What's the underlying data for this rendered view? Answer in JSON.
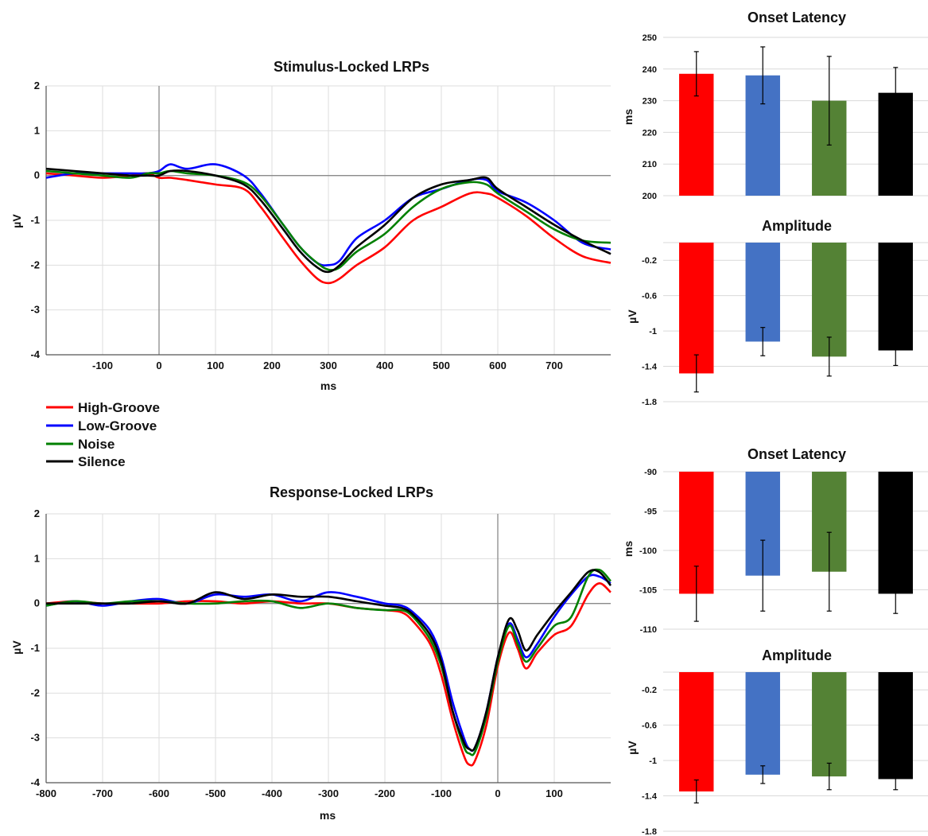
{
  "chart_data": [
    {
      "id": "stim",
      "type": "line",
      "title": "Stimulus-Locked LRPs",
      "xlabel": "ms",
      "ylabel": "µV",
      "xlim": [
        -200,
        800
      ],
      "ylim": [
        -4,
        2
      ],
      "xticks": [
        -100,
        0,
        100,
        200,
        300,
        400,
        500,
        600,
        700
      ],
      "yticks": [
        2,
        1,
        0,
        -1,
        -2,
        -3,
        -4
      ],
      "grid": true,
      "series": [
        {
          "name": "High-Groove",
          "color": "#ff0000",
          "x": [
            -200,
            -150,
            -100,
            -50,
            -20,
            0,
            20,
            50,
            100,
            150,
            180,
            220,
            250,
            280,
            300,
            320,
            350,
            400,
            450,
            500,
            550,
            580,
            600,
            650,
            700,
            750,
            800
          ],
          "y": [
            0.05,
            0.0,
            -0.05,
            0.0,
            0.05,
            -0.05,
            -0.05,
            -0.1,
            -0.2,
            -0.3,
            -0.7,
            -1.4,
            -1.9,
            -2.3,
            -2.4,
            -2.3,
            -2.0,
            -1.6,
            -1.0,
            -0.7,
            -0.4,
            -0.4,
            -0.5,
            -0.9,
            -1.4,
            -1.8,
            -1.95
          ]
        },
        {
          "name": "Low-Groove",
          "color": "#0000ff",
          "x": [
            -200,
            -150,
            -100,
            -50,
            -20,
            0,
            20,
            50,
            100,
            150,
            180,
            220,
            250,
            280,
            300,
            320,
            350,
            400,
            450,
            500,
            550,
            580,
            600,
            650,
            700,
            750,
            800
          ],
          "y": [
            -0.05,
            0.05,
            0.05,
            0.05,
            0.05,
            0.1,
            0.25,
            0.15,
            0.25,
            0.0,
            -0.4,
            -1.1,
            -1.6,
            -1.95,
            -2.0,
            -1.9,
            -1.4,
            -1.0,
            -0.5,
            -0.3,
            -0.1,
            -0.1,
            -0.35,
            -0.6,
            -1.0,
            -1.5,
            -1.65
          ]
        },
        {
          "name": "Noise",
          "color": "#008000",
          "x": [
            -200,
            -150,
            -100,
            -50,
            -20,
            0,
            20,
            50,
            100,
            150,
            180,
            220,
            250,
            280,
            300,
            320,
            350,
            400,
            450,
            500,
            550,
            580,
            600,
            650,
            700,
            750,
            800
          ],
          "y": [
            0.1,
            0.05,
            0.0,
            -0.05,
            0.05,
            0.05,
            0.1,
            0.05,
            0.0,
            -0.15,
            -0.45,
            -1.1,
            -1.6,
            -1.95,
            -2.1,
            -2.05,
            -1.7,
            -1.3,
            -0.7,
            -0.3,
            -0.15,
            -0.2,
            -0.4,
            -0.8,
            -1.2,
            -1.45,
            -1.5
          ]
        },
        {
          "name": "Silence",
          "color": "#000000",
          "x": [
            -200,
            -150,
            -100,
            -50,
            -20,
            0,
            20,
            50,
            100,
            150,
            180,
            220,
            250,
            280,
            300,
            320,
            350,
            400,
            450,
            500,
            550,
            580,
            600,
            650,
            700,
            750,
            800
          ],
          "y": [
            0.15,
            0.1,
            0.05,
            0.0,
            0.0,
            0.0,
            0.1,
            0.1,
            0.0,
            -0.2,
            -0.55,
            -1.2,
            -1.7,
            -2.05,
            -2.15,
            -2.0,
            -1.6,
            -1.1,
            -0.5,
            -0.2,
            -0.1,
            -0.05,
            -0.3,
            -0.7,
            -1.1,
            -1.45,
            -1.75
          ]
        }
      ]
    },
    {
      "id": "resp",
      "type": "line",
      "title": "Response-Locked LRPs",
      "xlabel": "ms",
      "ylabel": "µV",
      "xlim": [
        -800,
        200
      ],
      "ylim": [
        -4,
        2
      ],
      "xticks": [
        -800,
        -700,
        -600,
        -500,
        -400,
        -300,
        -200,
        -100,
        0,
        100
      ],
      "yticks": [
        2,
        1,
        0,
        -1,
        -2,
        -3,
        -4
      ],
      "grid": true,
      "series": [
        {
          "name": "High-Groove",
          "color": "#ff0000",
          "x": [
            -800,
            -750,
            -700,
            -650,
            -600,
            -550,
            -500,
            -450,
            -400,
            -350,
            -300,
            -250,
            -200,
            -170,
            -150,
            -120,
            -100,
            -80,
            -60,
            -50,
            -40,
            -20,
            0,
            20,
            35,
            50,
            70,
            100,
            130,
            160,
            180,
            200
          ],
          "y": [
            0.0,
            0.05,
            0.0,
            0.0,
            0.0,
            0.05,
            0.05,
            0.0,
            0.05,
            0.0,
            0.0,
            -0.1,
            -0.15,
            -0.2,
            -0.4,
            -0.9,
            -1.6,
            -2.6,
            -3.4,
            -3.6,
            -3.5,
            -2.7,
            -1.4,
            -0.65,
            -1.0,
            -1.45,
            -1.1,
            -0.7,
            -0.5,
            0.2,
            0.45,
            0.25
          ]
        },
        {
          "name": "Low-Groove",
          "color": "#0000ff",
          "x": [
            -800,
            -750,
            -700,
            -650,
            -600,
            -550,
            -500,
            -450,
            -400,
            -350,
            -300,
            -250,
            -200,
            -170,
            -150,
            -120,
            -100,
            -80,
            -60,
            -50,
            -40,
            -20,
            0,
            20,
            35,
            50,
            70,
            100,
            130,
            160,
            180,
            200
          ],
          "y": [
            -0.05,
            0.05,
            -0.05,
            0.05,
            0.1,
            0.0,
            0.2,
            0.15,
            0.2,
            0.05,
            0.25,
            0.15,
            0.0,
            -0.05,
            -0.2,
            -0.6,
            -1.2,
            -2.2,
            -3.0,
            -3.25,
            -3.2,
            -2.4,
            -1.2,
            -0.45,
            -0.8,
            -1.2,
            -0.9,
            -0.3,
            0.2,
            0.6,
            0.6,
            0.45
          ]
        },
        {
          "name": "Noise",
          "color": "#008000",
          "x": [
            -800,
            -750,
            -700,
            -650,
            -600,
            -550,
            -500,
            -450,
            -400,
            -350,
            -300,
            -250,
            -200,
            -170,
            -150,
            -120,
            -100,
            -80,
            -60,
            -50,
            -40,
            -20,
            0,
            20,
            35,
            50,
            70,
            100,
            130,
            160,
            180,
            200
          ],
          "y": [
            -0.05,
            0.05,
            0.0,
            0.05,
            0.05,
            0.0,
            0.0,
            0.05,
            0.05,
            -0.1,
            0.0,
            -0.1,
            -0.15,
            -0.15,
            -0.3,
            -0.8,
            -1.4,
            -2.4,
            -3.2,
            -3.35,
            -3.3,
            -2.5,
            -1.3,
            -0.5,
            -0.9,
            -1.3,
            -1.0,
            -0.5,
            -0.3,
            0.6,
            0.75,
            0.5
          ]
        },
        {
          "name": "Silence",
          "color": "#000000",
          "x": [
            -800,
            -750,
            -700,
            -650,
            -600,
            -550,
            -500,
            -450,
            -400,
            -350,
            -300,
            -250,
            -200,
            -170,
            -150,
            -120,
            -100,
            -80,
            -60,
            -50,
            -40,
            -20,
            0,
            20,
            35,
            50,
            70,
            100,
            130,
            160,
            180,
            200
          ],
          "y": [
            0.0,
            0.0,
            0.0,
            0.0,
            0.05,
            0.0,
            0.25,
            0.1,
            0.2,
            0.15,
            0.15,
            0.05,
            -0.05,
            -0.1,
            -0.25,
            -0.7,
            -1.3,
            -2.4,
            -3.1,
            -3.25,
            -3.2,
            -2.4,
            -1.2,
            -0.35,
            -0.6,
            -1.05,
            -0.7,
            -0.2,
            0.25,
            0.7,
            0.7,
            0.4
          ]
        }
      ]
    },
    {
      "id": "lat1",
      "type": "bar",
      "title": "Onset Latency",
      "ylabel": "ms",
      "categories": [
        "High-Groove",
        "Low-Groove",
        "Noise",
        "Silence"
      ],
      "colors": [
        "#ff0000",
        "#4472c4",
        "#548235",
        "#000000"
      ],
      "values": [
        238.5,
        238,
        230,
        232.5
      ],
      "errors": [
        7,
        9,
        14,
        8
      ],
      "ylim": [
        200,
        250
      ],
      "yticks": [
        250,
        240,
        230,
        220,
        210,
        200
      ],
      "ytick_labels": [
        "250",
        "240",
        "230",
        "220",
        "210",
        "200"
      ]
    },
    {
      "id": "amp1",
      "type": "bar",
      "title": "Amplitude",
      "ylabel": "µV",
      "categories": [
        "High-Groove",
        "Low-Groove",
        "Noise",
        "Silence"
      ],
      "colors": [
        "#ff0000",
        "#4472c4",
        "#548235",
        "#000000"
      ],
      "values": [
        -1.48,
        -1.12,
        -1.29,
        -1.22
      ],
      "errors": [
        0.21,
        0.16,
        0.22,
        0.17
      ],
      "ylim": [
        -1.8,
        0
      ],
      "yticks": [
        -0.2,
        -0.6,
        -1.0,
        -1.4,
        -1.8
      ],
      "ytick_labels": [
        "-0.2",
        "-0.6",
        "-1",
        "-1.4",
        "-1.8"
      ]
    },
    {
      "id": "lat2",
      "type": "bar",
      "title": "Onset Latency",
      "ylabel": "ms",
      "categories": [
        "High-Groove",
        "Low-Groove",
        "Noise",
        "Silence"
      ],
      "colors": [
        "#ff0000",
        "#4472c4",
        "#548235",
        "#000000"
      ],
      "values": [
        -105.5,
        -103.2,
        -102.7,
        -105.5
      ],
      "errors": [
        3.5,
        4.5,
        5.0,
        2.5
      ],
      "ylim": [
        -110,
        -90
      ],
      "yticks": [
        -90,
        -95,
        -100,
        -105,
        -110
      ],
      "ytick_labels": [
        "-90",
        "-95",
        "-100",
        "-105",
        "-110"
      ]
    },
    {
      "id": "amp2",
      "type": "bar",
      "title": "Amplitude",
      "ylabel": "µV",
      "categories": [
        "High-Groove",
        "Low-Groove",
        "Noise",
        "Silence"
      ],
      "colors": [
        "#ff0000",
        "#4472c4",
        "#548235",
        "#000000"
      ],
      "values": [
        -1.35,
        -1.16,
        -1.18,
        -1.21
      ],
      "errors": [
        0.13,
        0.1,
        0.15,
        0.12
      ],
      "ylim": [
        -1.8,
        0
      ],
      "yticks": [
        -0.2,
        -0.6,
        -1.0,
        -1.4,
        -1.8
      ],
      "ytick_labels": [
        "-0.2",
        "-0.6",
        "-1",
        "-1.4",
        "-1.8"
      ]
    }
  ],
  "legend": {
    "entries": [
      {
        "label": "High-Groove",
        "color": "#ff0000"
      },
      {
        "label": "Low-Groove",
        "color": "#0000ff"
      },
      {
        "label": "Noise",
        "color": "#008000"
      },
      {
        "label": "Silence",
        "color": "#000000"
      }
    ]
  }
}
